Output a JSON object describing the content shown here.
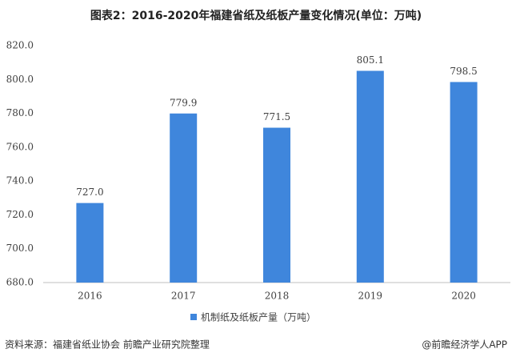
{
  "chart_data": {
    "type": "bar",
    "title": "图表2：2016-2020年福建省纸及纸板产量变化情况(单位：万吨)",
    "categories": [
      "2016",
      "2017",
      "2018",
      "2019",
      "2020"
    ],
    "series": [
      {
        "name": "机制纸及纸板产量（万吨）",
        "color": "#3f86dc",
        "values": [
          727.0,
          779.9,
          771.5,
          805.1,
          798.5
        ],
        "value_labels": [
          "727.0",
          "779.9",
          "771.5",
          "805.1",
          "798.5"
        ]
      }
    ],
    "ylim": [
      680,
      820
    ],
    "yticks": [
      {
        "value": 680,
        "label": "680.0"
      },
      {
        "value": 700,
        "label": "700.0"
      },
      {
        "value": 720,
        "label": "720.0"
      },
      {
        "value": 740,
        "label": "740.0"
      },
      {
        "value": 760,
        "label": "760.0"
      },
      {
        "value": 780,
        "label": "780.0"
      },
      {
        "value": 800,
        "label": "800.0"
      },
      {
        "value": 820,
        "label": "820.0"
      }
    ],
    "source": "资料来源：福建省纸业协会 前瞻产业研究院整理",
    "credit": "@前瞻经济学人APP"
  }
}
